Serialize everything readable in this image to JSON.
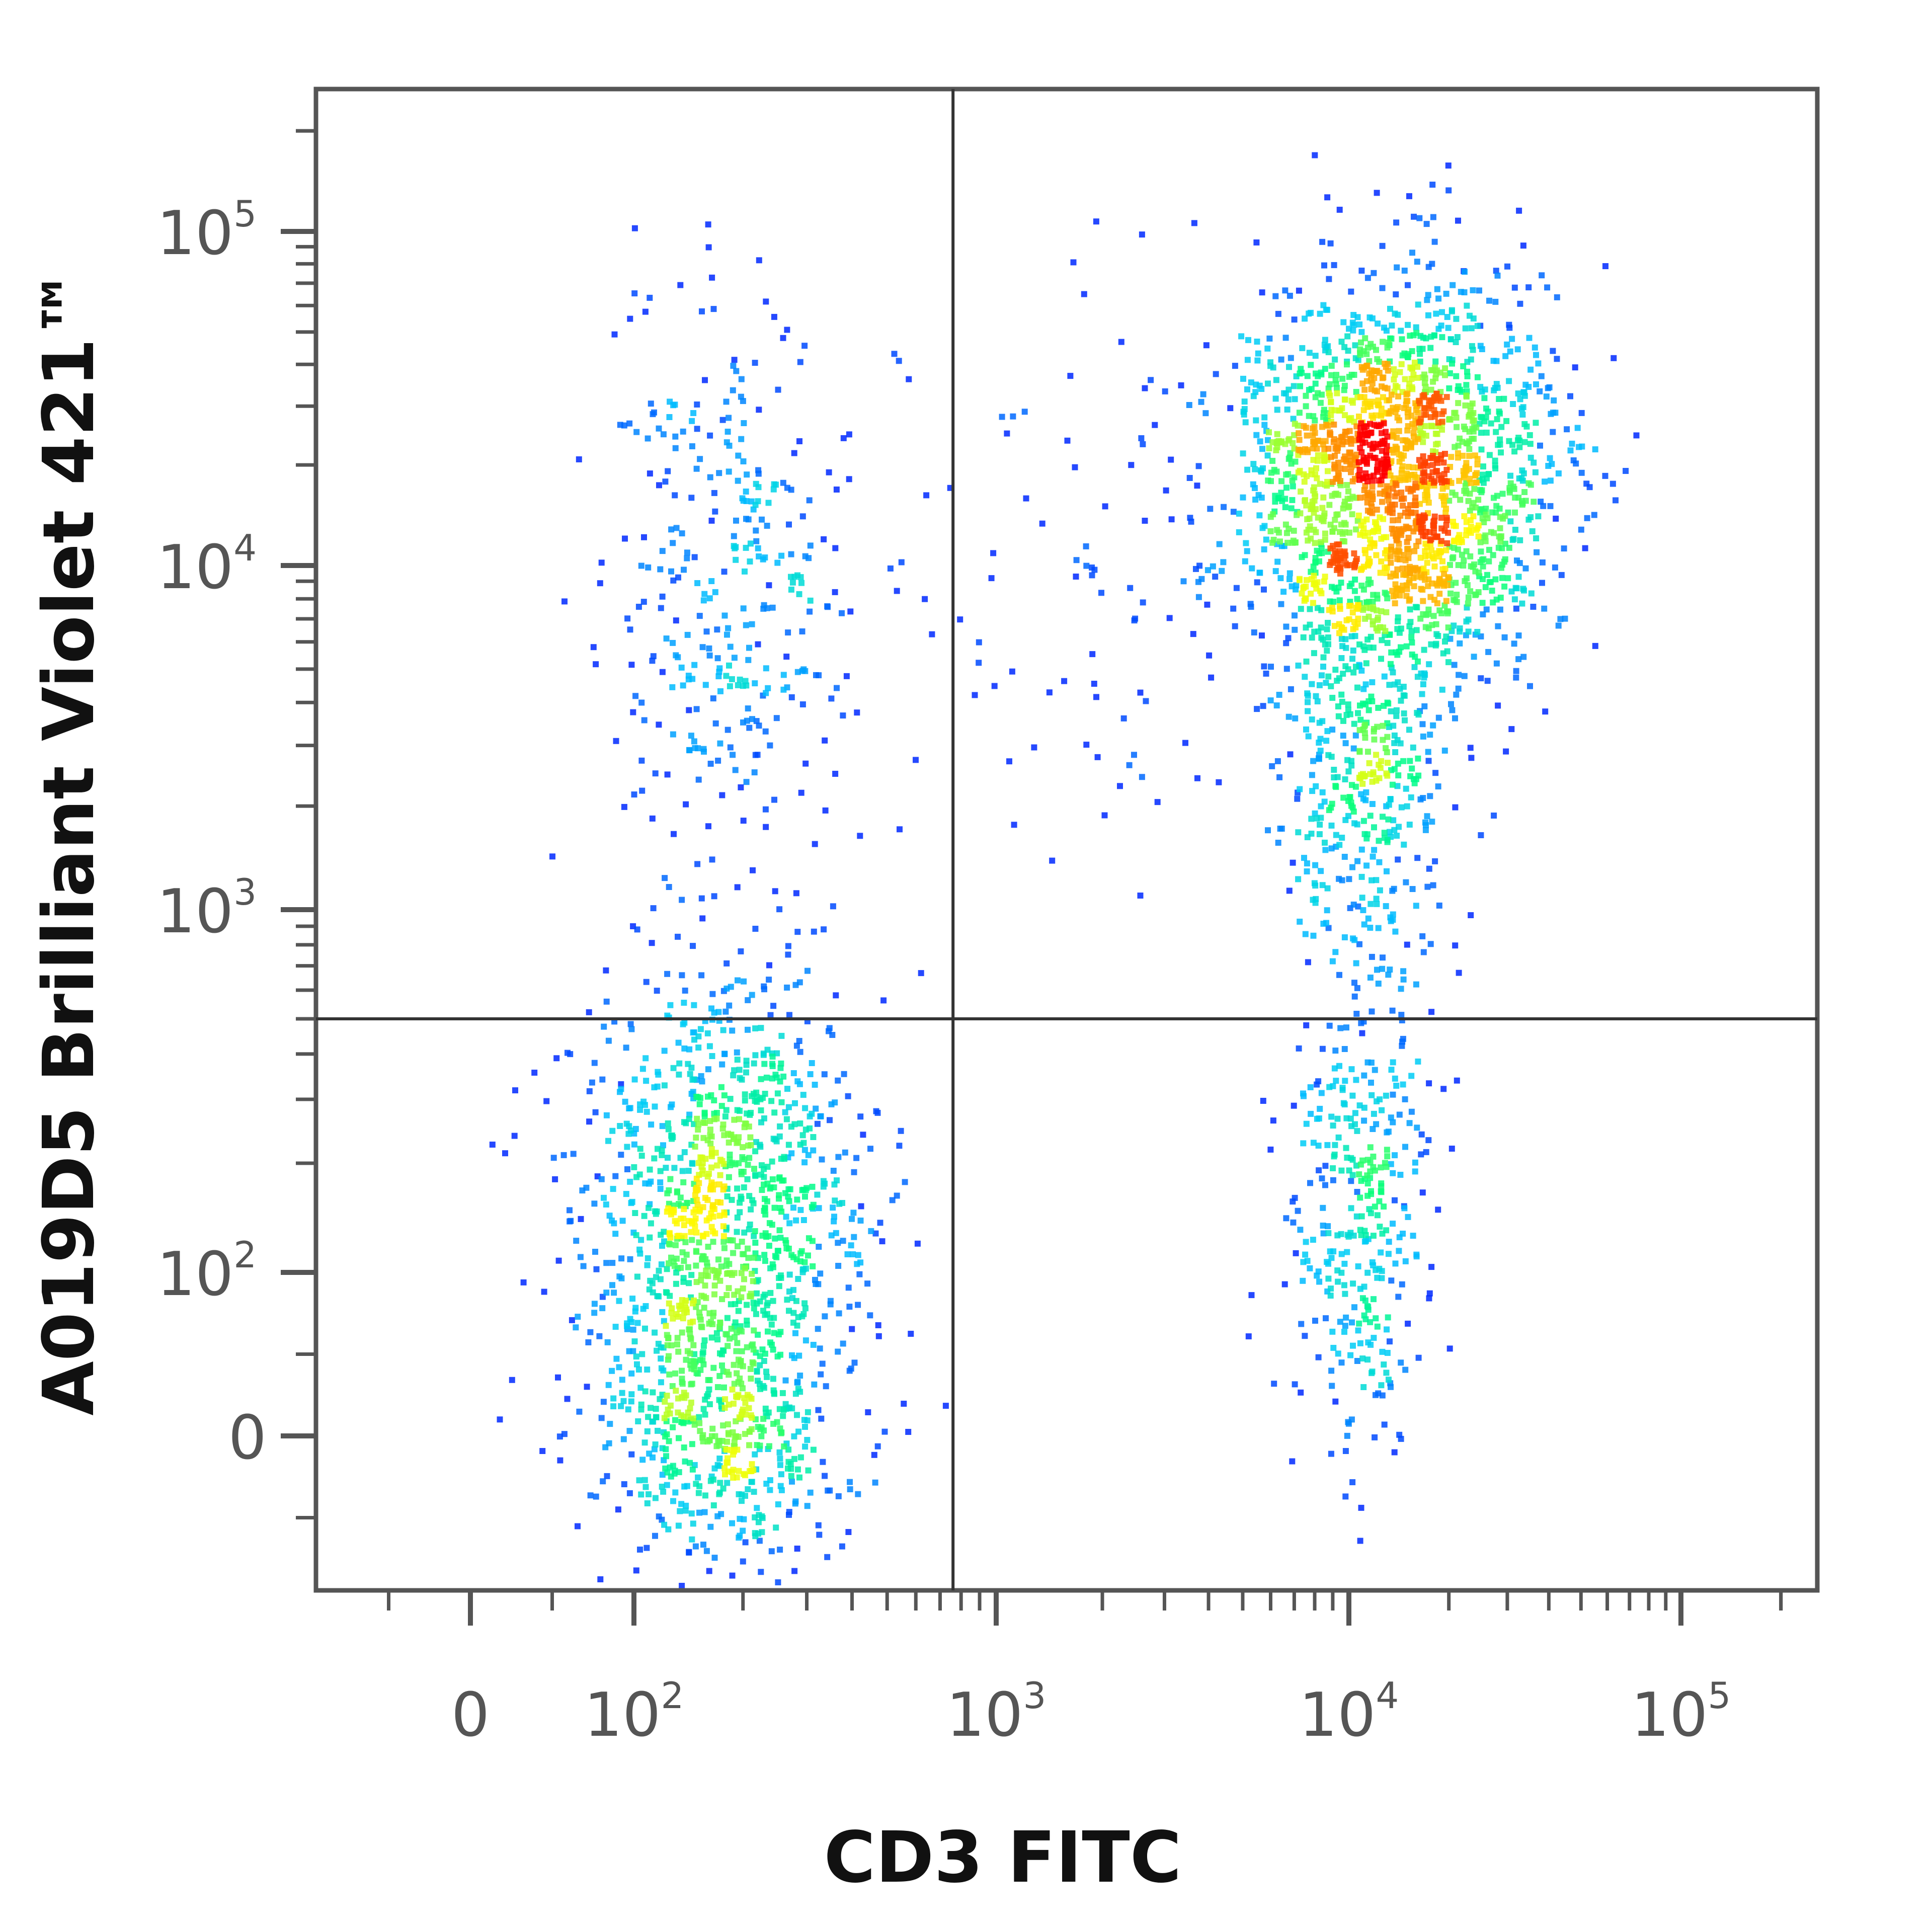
{
  "chart_data": {
    "type": "scatter",
    "subtype": "flow-cytometry-density-dot-plot",
    "xlabel": "CD3 FITC",
    "ylabel": "A019D5 Brilliant Violet 421™",
    "x_scale": "biexponential",
    "y_scale": "biexponential",
    "xlim": [
      -94,
      250000
    ],
    "ylim": [
      -94,
      250000
    ],
    "x_ticks": [
      {
        "value": 0,
        "base": "0",
        "exp": ""
      },
      {
        "value": 100,
        "base": "10",
        "exp": "2"
      },
      {
        "value": 1000,
        "base": "10",
        "exp": "3"
      },
      {
        "value": 10000,
        "base": "10",
        "exp": "4"
      },
      {
        "value": 100000,
        "base": "10",
        "exp": "5"
      }
    ],
    "y_ticks": [
      {
        "value": 0,
        "base": "0",
        "exp": ""
      },
      {
        "value": 100,
        "base": "10",
        "exp": "2"
      },
      {
        "value": 1000,
        "base": "10",
        "exp": "3"
      },
      {
        "value": 10000,
        "base": "10",
        "exp": "4"
      },
      {
        "value": 100000,
        "base": "10",
        "exp": "5"
      }
    ],
    "quadrant_gate": {
      "x": 760,
      "y": 500
    },
    "grid": false,
    "legend": "none",
    "color_map": [
      "#0000ff",
      "#00c8ff",
      "#00ff80",
      "#ffff00",
      "#ff8000",
      "#ff0000"
    ],
    "populations": [
      {
        "quadrant": "lower-left",
        "x_center": 170,
        "y_center": 150,
        "x_spread_decades": 0.2,
        "y_spread_decades": 0.35,
        "events": 1100
      },
      {
        "quadrant": "lower-left",
        "x_center": 180,
        "y_center": 0,
        "x_spread_decades": 0.18,
        "y_spread_decades": 0.2,
        "events": 450
      },
      {
        "quadrant": "upper-left",
        "x_center": 180,
        "y_center": 8000,
        "x_spread_decades": 0.18,
        "y_spread_decades": 0.45,
        "events": 350
      },
      {
        "quadrant": "upper-right",
        "x_center": 14000,
        "y_center": 18000,
        "x_spread_decades": 0.22,
        "y_spread_decades": 0.27,
        "events": 2000
      },
      {
        "quadrant": "upper-right",
        "x_center": 11000,
        "y_center": 2500,
        "x_spread_decades": 0.12,
        "y_spread_decades": 0.3,
        "events": 400
      },
      {
        "quadrant": "lower-right",
        "x_center": 11000,
        "y_center": 150,
        "x_spread_decades": 0.1,
        "y_spread_decades": 0.35,
        "events": 350
      },
      {
        "quadrant": "upper-right",
        "x_center": 2500,
        "y_center": 10000,
        "x_spread_decades": 0.35,
        "y_spread_decades": 0.4,
        "events": 120
      }
    ]
  }
}
